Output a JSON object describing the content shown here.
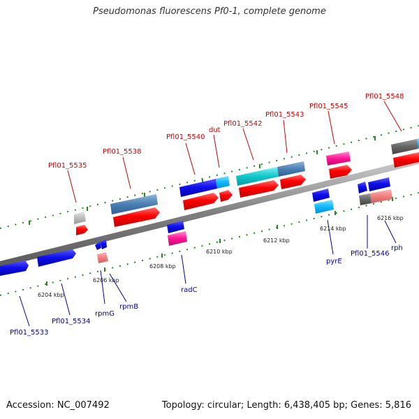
{
  "title": "Pseudomonas fluorescens Pf0-1, complete genome",
  "footer": {
    "accession": "Accession: NC_007492",
    "topology": "Topology: circular; Length: 6,438,405 bp; Genes: 5,816"
  },
  "colors": {
    "label_top": "#cc0000",
    "label_bottom": "#0000aa",
    "backbone": "#7f7f7f",
    "tick_dots": "#228822"
  },
  "scale_labels": [
    "6204 kbp",
    "6206 kbp",
    "6208 kbp",
    "6210 kbp",
    "6212 kbp",
    "6214 kbp",
    "6216 kbp"
  ],
  "gene_labels_top": [
    "Pfl01_5535",
    "Pfl01_5538",
    "Pfl01_5540",
    "dut",
    "Pfl01_5542",
    "Pfl01_5543",
    "Pfl01_5545",
    "Pfl01_5548"
  ],
  "gene_labels_bottom": [
    "Pfl01_5533",
    "Pfl01_5534",
    "rpmG",
    "rpmB",
    "radC",
    "pyrE",
    "Pfl01_5546",
    "rph"
  ]
}
